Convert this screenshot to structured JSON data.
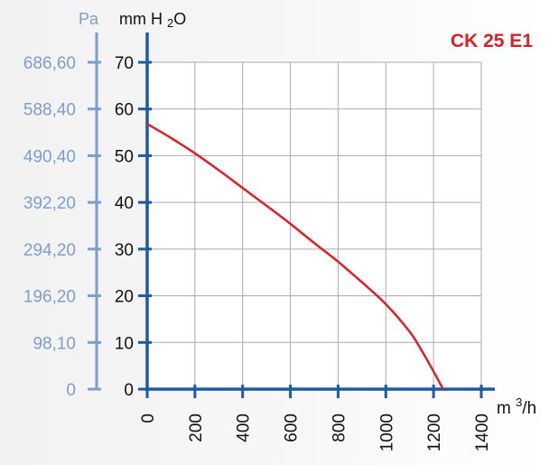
{
  "chart_data": {
    "type": "line",
    "title": "CK 25 E1",
    "xlabel_unit": "m3/h",
    "y_unit_left": "Pa",
    "y_unit_right": "mm H2O",
    "x_ticks": [
      0,
      200,
      400,
      600,
      800,
      1000,
      1200,
      1400
    ],
    "y_ticks": [
      0,
      10,
      20,
      30,
      40,
      50,
      60,
      70
    ],
    "pa_ticks": [
      "0",
      "98,10",
      "196,20",
      "294,20",
      "392,20",
      "490,40",
      "588,40",
      "686,60"
    ],
    "xlim": [
      0,
      1400
    ],
    "ylim": [
      0,
      70
    ],
    "grid": true,
    "series": [
      {
        "x": [
          0,
          100,
          200,
          300,
          400,
          500,
          600,
          700,
          800,
          900,
          1000,
          1100,
          1150,
          1200,
          1240
        ],
        "y": [
          56.8,
          53.8,
          50.5,
          46.9,
          43.1,
          39.3,
          35.4,
          31.3,
          27.3,
          22.9,
          18.2,
          12.3,
          8.3,
          3.8,
          0
        ]
      }
    ]
  },
  "colors": {
    "axis_right": "#1c5aa6",
    "axis_left": "#7d9cd0",
    "grid": "#aaaaaa",
    "curve": "#e01e25",
    "title": "#d71f26",
    "text": "#111111"
  }
}
